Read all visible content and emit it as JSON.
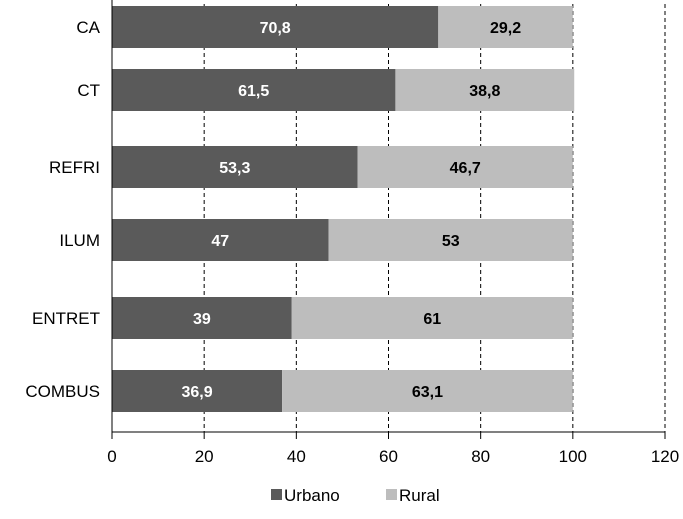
{
  "colors": {
    "urbano": "#5a5a5a",
    "rural": "#bdbdbd",
    "grid": "#000000",
    "axis": "#000000",
    "text": "#000000",
    "label_on_dark": "#ffffff",
    "label_on_light": "#000000"
  },
  "chart_data": {
    "type": "bar",
    "orientation": "horizontal",
    "stacked": true,
    "categories": [
      "CA",
      "CT",
      "REFRI",
      "ILUM",
      "ENTRET",
      "COMBUS"
    ],
    "series": [
      {
        "name": "Urbano",
        "color": "#5a5a5a",
        "values": [
          70.8,
          61.5,
          53.3,
          47,
          39,
          36.9
        ],
        "labels": [
          "70,8",
          "61,5",
          "53,3",
          "47",
          "39",
          "36,9"
        ]
      },
      {
        "name": "Rural",
        "color": "#bdbdbd",
        "values": [
          29.2,
          38.8,
          46.7,
          53,
          61,
          63.1
        ],
        "labels": [
          "29,2",
          "38,8",
          "46,7",
          "53",
          "61",
          "63,1"
        ]
      }
    ],
    "xlim": [
      0,
      120
    ],
    "xticks": [
      0,
      20,
      40,
      60,
      80,
      100,
      120
    ],
    "xtick_labels": [
      "0",
      "20",
      "40",
      "60",
      "80",
      "100",
      "120"
    ],
    "grid": "vertical-dashed",
    "legend_position": "bottom-center",
    "title": "",
    "xlabel": "",
    "ylabel": ""
  }
}
